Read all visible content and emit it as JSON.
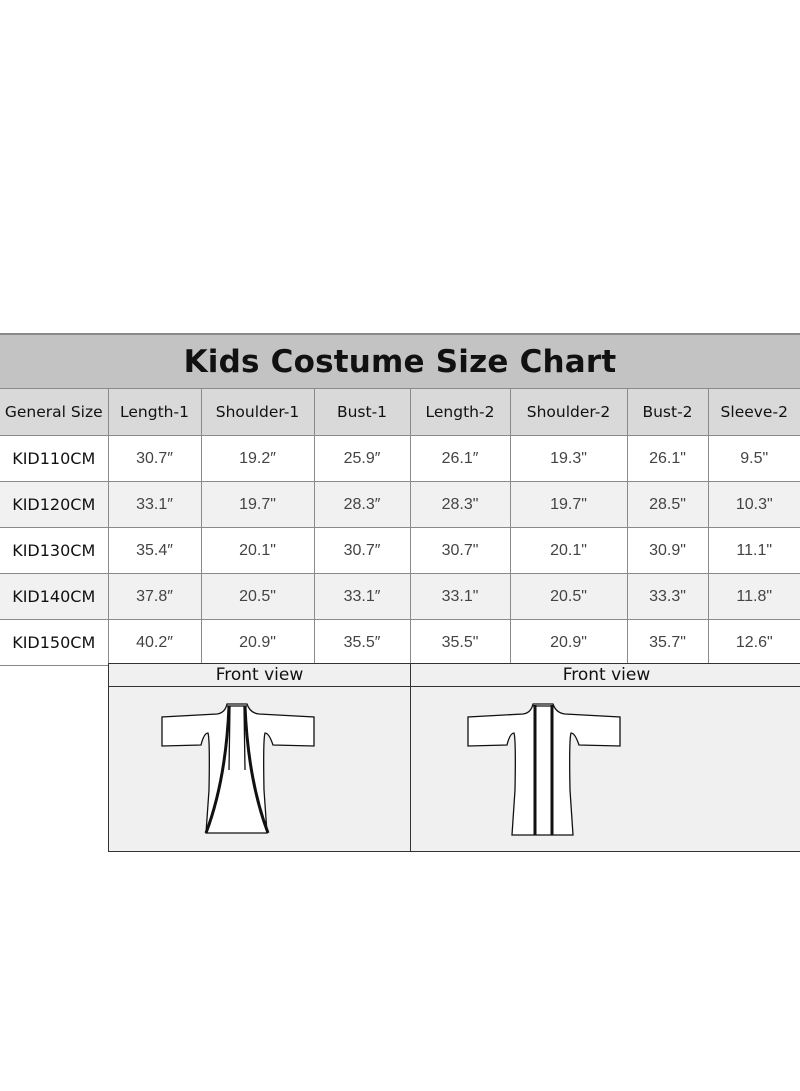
{
  "title": "Kids Costume Size Chart",
  "table": {
    "headers": [
      "General Size",
      "Length-1",
      "Shoulder-1",
      "Bust-1",
      "Length-2",
      "Shoulder-2",
      "Bust-2",
      "Sleeve-2"
    ],
    "rows": [
      [
        "KID110CM",
        "30.7″",
        "19.2″",
        "25.9″",
        "26.1″",
        "19.3\"",
        "26.1\"",
        "9.5\""
      ],
      [
        "KID120CM",
        "33.1″",
        "19.7\"",
        "28.3″",
        "28.3\"",
        "19.7\"",
        "28.5\"",
        "10.3\""
      ],
      [
        "KID130CM",
        "35.4″",
        "20.1\"",
        "30.7″",
        "30.7\"",
        "20.1\"",
        "30.9\"",
        "11.1\""
      ],
      [
        "KID140CM",
        "37.8″",
        "20.5\"",
        "33.1″",
        "33.1\"",
        "20.5\"",
        "33.3\"",
        "11.8\""
      ],
      [
        "KID150CM",
        "40.2″",
        "20.9\"",
        "35.5″",
        "35.5\"",
        "20.9\"",
        "35.7\"",
        "12.6\""
      ]
    ]
  },
  "views": [
    {
      "label": "Front view",
      "icon": "open-cardigan-curved-front-icon"
    },
    {
      "label": "Front view",
      "icon": "open-cardigan-straight-front-icon"
    }
  ]
}
